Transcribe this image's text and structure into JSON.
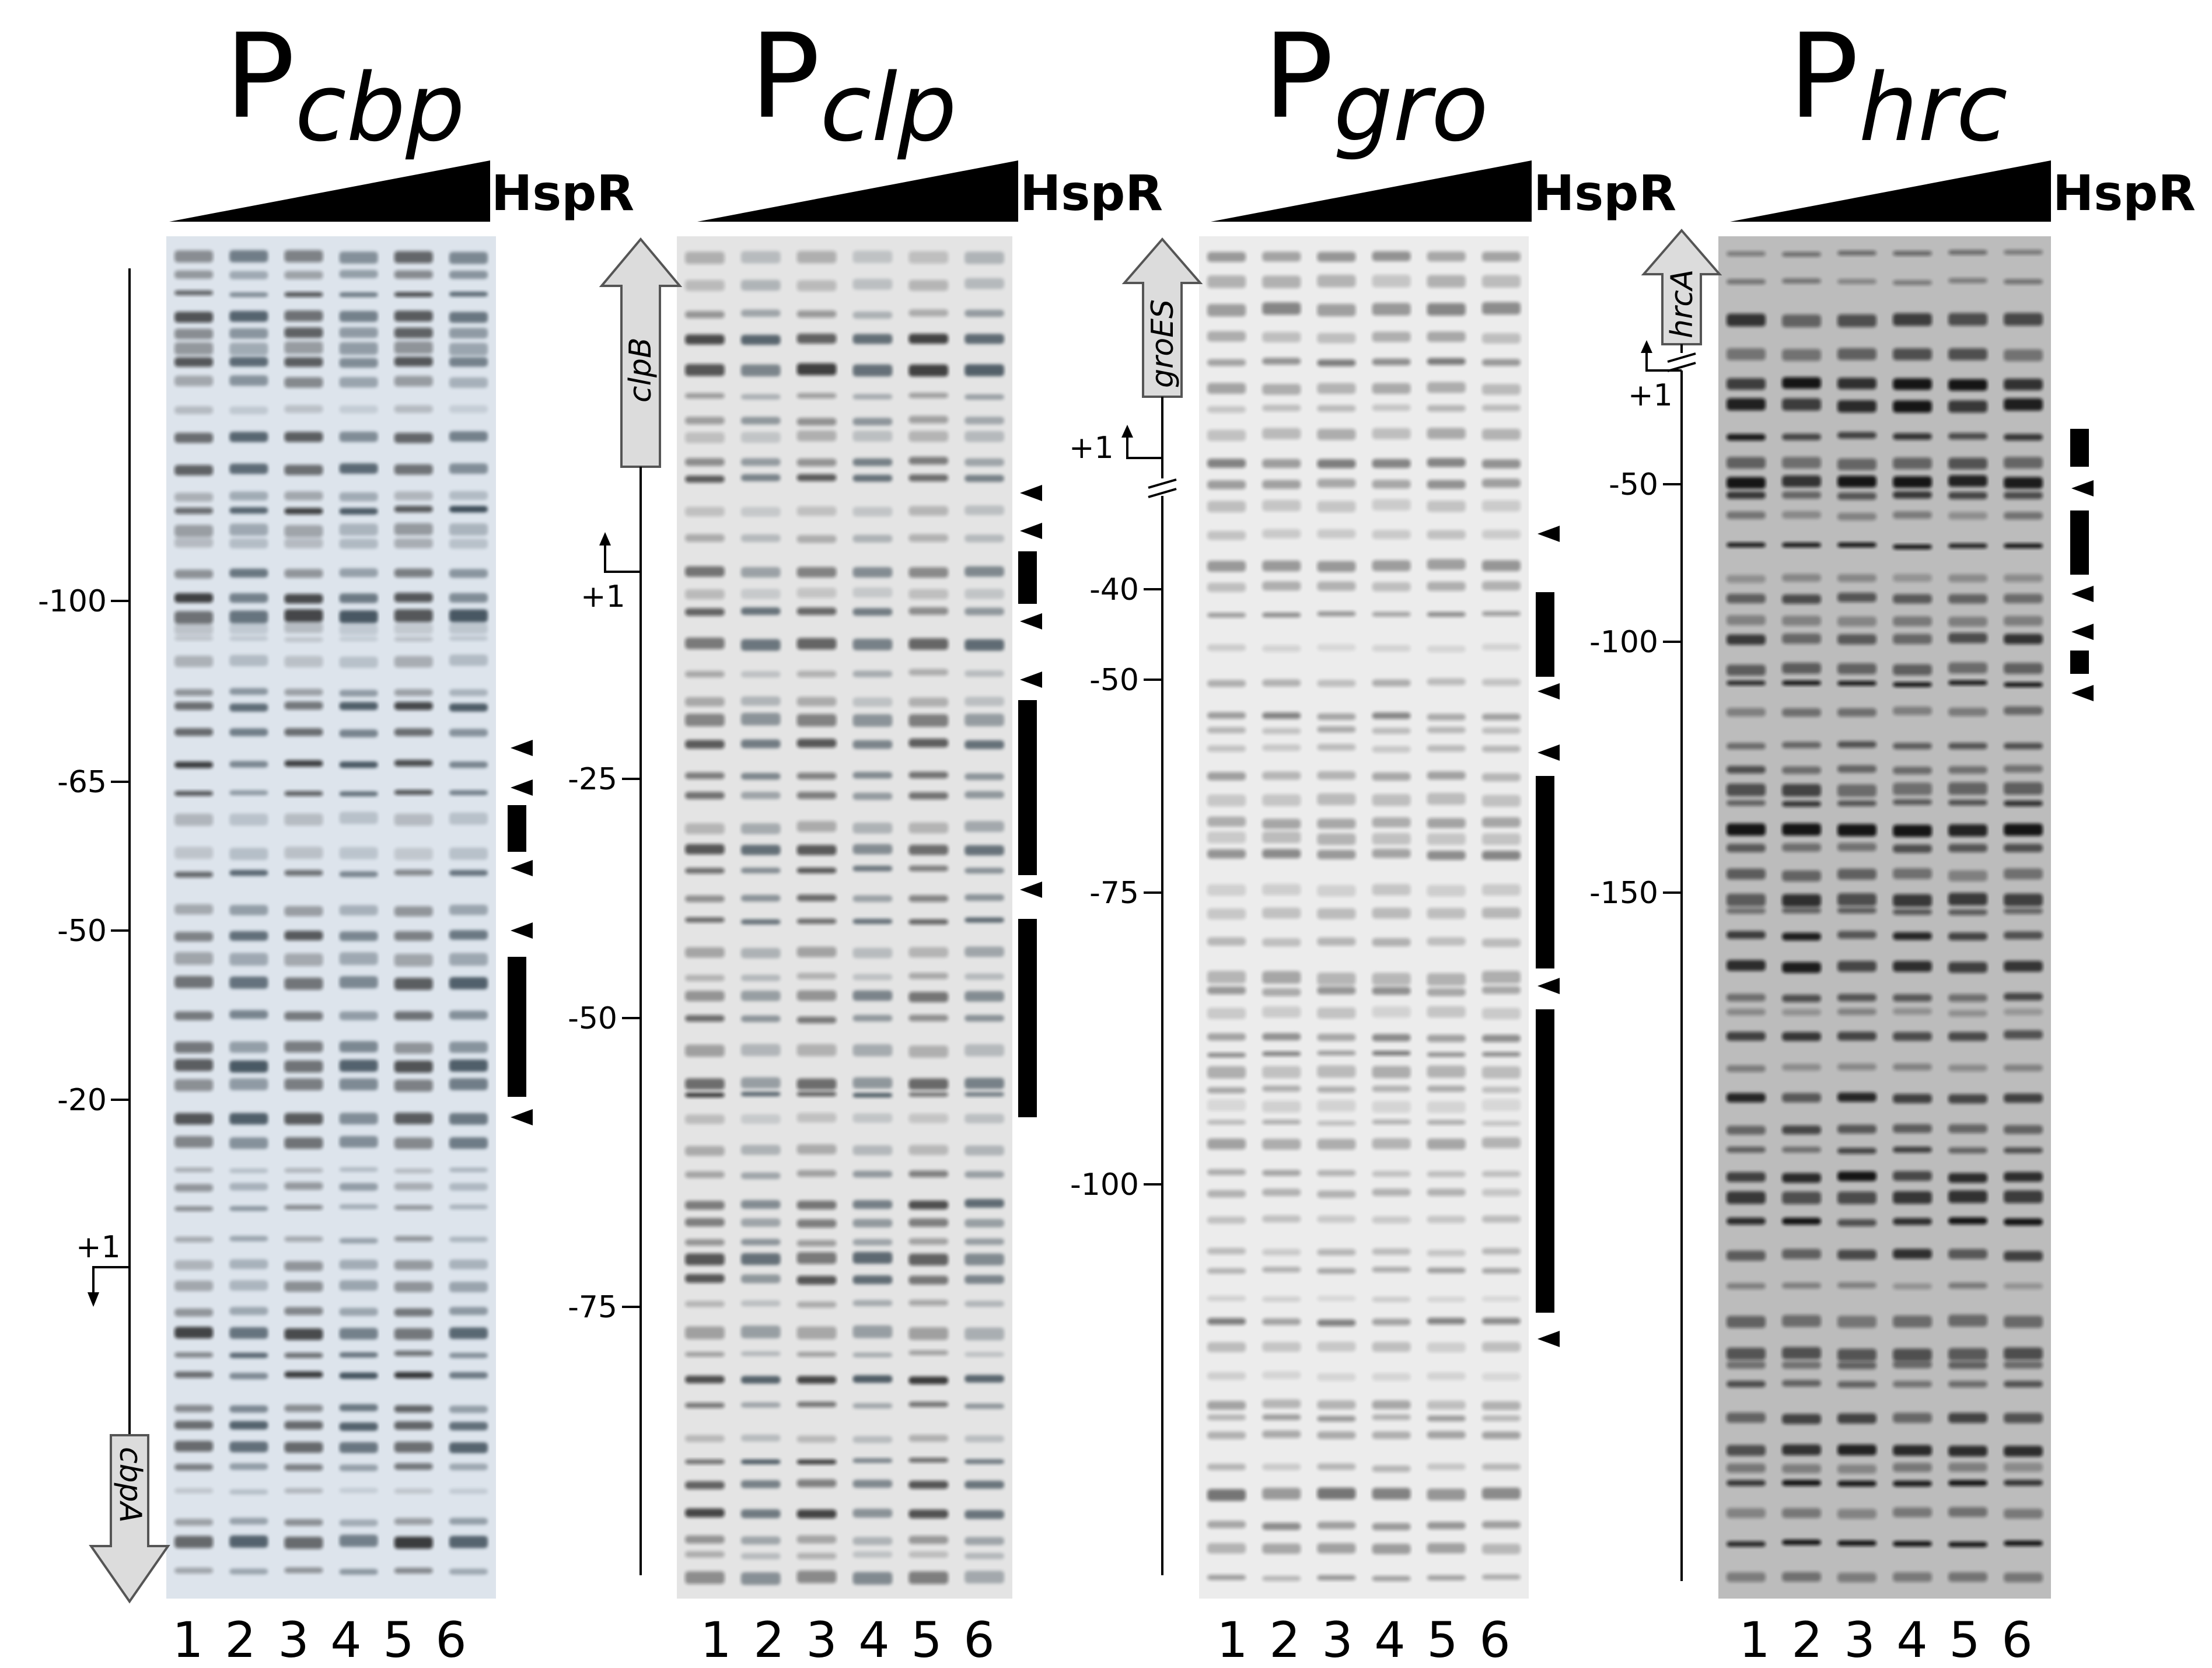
{
  "figure": {
    "titentlement_note": "",
    "reagent_label": "HspR",
    "lane_labels": [
      "1",
      "2",
      "3",
      "4",
      "5",
      "6"
    ],
    "panels": [
      {
        "id": "cbp",
        "title_main": "P",
        "title_sub": "cbp",
        "gene": "cbpA",
        "gene_direction": "down",
        "tss_label": "+1",
        "gel_style": "light",
        "ticks": [
          "-100",
          "-65",
          "-50",
          "-20"
        ]
      },
      {
        "id": "clp",
        "title_main": "P",
        "title_sub": "clp",
        "gene": "clpB",
        "gene_direction": "up",
        "tss_label": "+1",
        "gel_style": "light",
        "ticks": [
          "-25",
          "-50",
          "-75"
        ]
      },
      {
        "id": "gro",
        "title_main": "P",
        "title_sub": "gro",
        "gene": "groES",
        "gene_direction": "up",
        "tss_label": "+1",
        "gel_style": "light",
        "ticks": [
          "-40",
          "-50",
          "-75",
          "-100"
        ]
      },
      {
        "id": "hrc",
        "title_main": "P",
        "title_sub": "hrc",
        "gene": "hrcA",
        "gene_direction": "up",
        "tss_label": "+1",
        "gel_style": "dark",
        "ticks": [
          "-50",
          "-100",
          "-150"
        ]
      }
    ]
  }
}
